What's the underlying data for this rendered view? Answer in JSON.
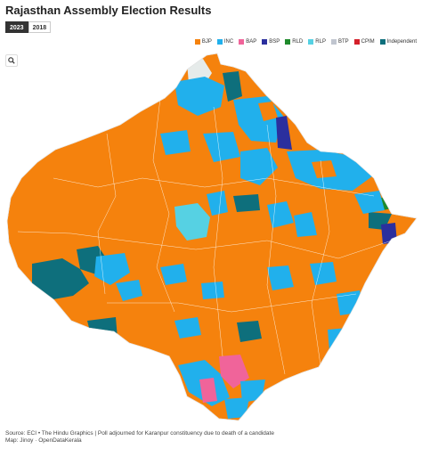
{
  "title": "Rajasthan Assembly Election Results",
  "tabs": [
    {
      "label": "2023",
      "active": true
    },
    {
      "label": "2018",
      "active": false
    }
  ],
  "legend": [
    {
      "label": "BJP",
      "color": "#f5820d"
    },
    {
      "label": "INC",
      "color": "#21b0ec"
    },
    {
      "label": "BAP",
      "color": "#f0649a"
    },
    {
      "label": "BSP",
      "color": "#2b2f9e"
    },
    {
      "label": "RLD",
      "color": "#1f8a2c"
    },
    {
      "label": "RLP",
      "color": "#56d1e3"
    },
    {
      "label": "BTP",
      "color": "#c0c5cf"
    },
    {
      "label": "CPIM",
      "color": "#d4202a"
    },
    {
      "label": "Independent",
      "color": "#0e6f7c"
    }
  ],
  "search_icon": "search-icon",
  "footer": {
    "line1": "Source: ECI • The Hindu Graphics | Poll adjourned for Karanpur constituency due to death of a candidate",
    "line2": "Map: Jinoy · OpenDataKerala"
  },
  "colors": {
    "bjp": "#f5820d",
    "inc": "#21b0ec",
    "bap": "#f0649a",
    "bsp": "#2b2f9e",
    "rld": "#1f8a2c",
    "rlp": "#56d1e3",
    "independent": "#0e6f7c",
    "no_data": "#e6ebea"
  }
}
